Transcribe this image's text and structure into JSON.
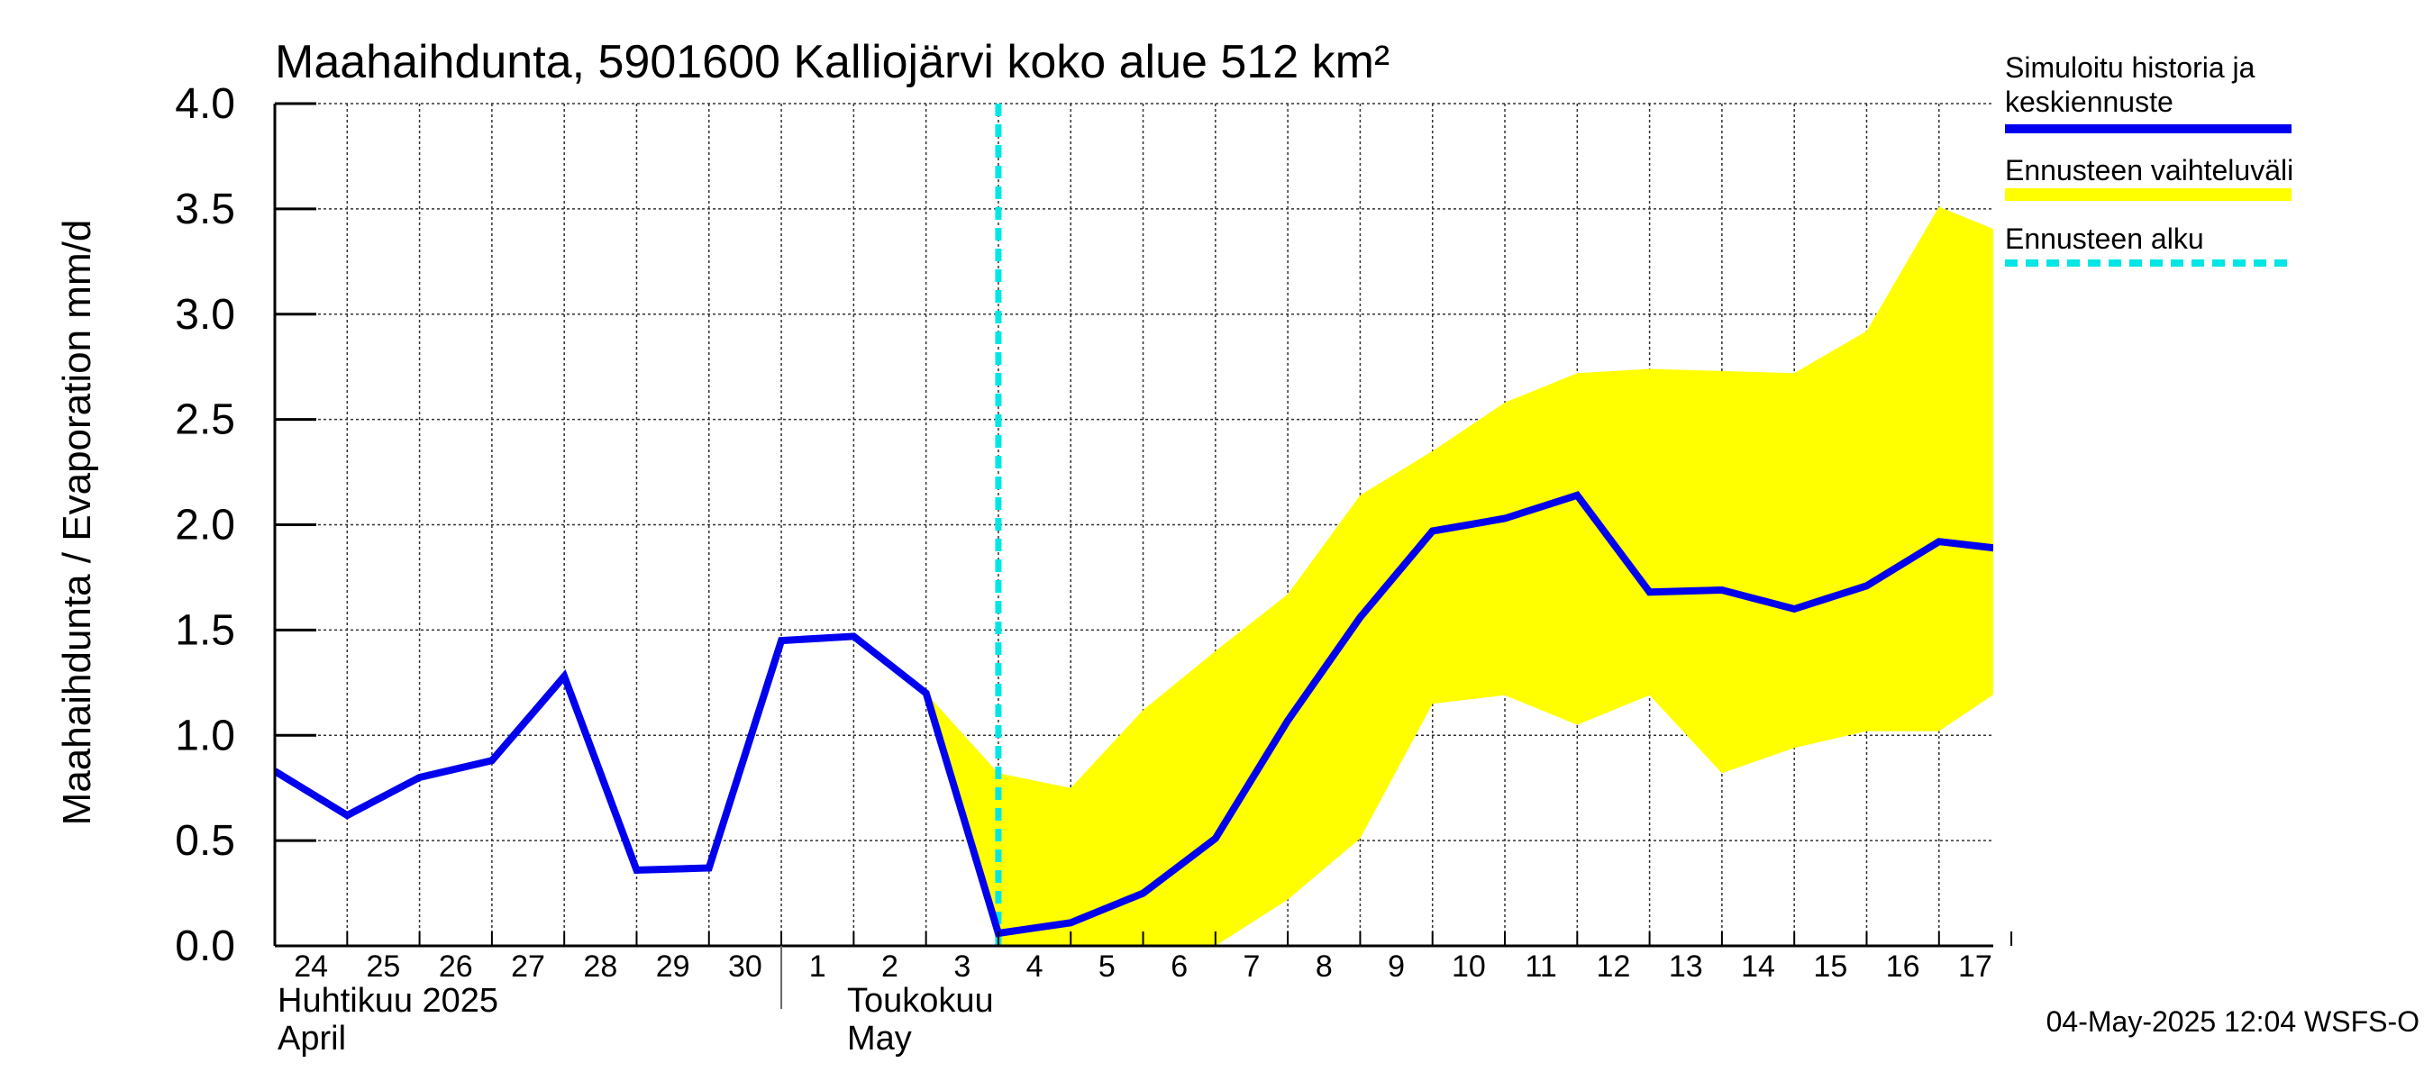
{
  "chart_data": {
    "type": "line",
    "title": "Maahaihdunta, 5901600 Kalliojärvi koko alue 512 km²",
    "ylabel": "Maahaihdunta / Evaporation   mm/d",
    "ylim": [
      0,
      4.0
    ],
    "yticks": [
      "0.0",
      "0.5",
      "1.0",
      "1.5",
      "2.0",
      "2.5",
      "3.0",
      "3.5",
      "4.0"
    ],
    "x_labels": [
      "24",
      "25",
      "26",
      "27",
      "28",
      "29",
      "30",
      "1",
      "2",
      "3",
      "4",
      "5",
      "6",
      "7",
      "8",
      "9",
      "10",
      "11",
      "12",
      "13",
      "14",
      "15",
      "16",
      "17"
    ],
    "month_labels": {
      "april_fi": "Huhtikuu  2025",
      "april_en": "April",
      "may_fi": "Toukokuu",
      "may_en": "May"
    },
    "grid": true,
    "forecast_start": "4",
    "series": [
      {
        "name": "Simuloitu historia ja keskiennuste",
        "color": "#0000ee",
        "x": [
          "24",
          "25",
          "26",
          "27",
          "28",
          "29",
          "30",
          "1",
          "2",
          "3",
          "4",
          "5",
          "6",
          "7",
          "8",
          "9",
          "10",
          "11",
          "12",
          "13",
          "14",
          "15",
          "16",
          "17",
          "18"
        ],
        "values": [
          0.83,
          0.62,
          0.8,
          0.88,
          1.28,
          0.36,
          0.37,
          1.45,
          1.47,
          1.2,
          0.06,
          0.11,
          0.25,
          0.51,
          1.07,
          1.56,
          1.97,
          2.03,
          2.14,
          1.68,
          1.69,
          1.6,
          1.71,
          1.92,
          1.88
        ]
      }
    ],
    "band": {
      "name": "Ennusteen vaihteluväli",
      "color": "#ffff00",
      "x": [
        "3",
        "4",
        "5",
        "6",
        "7",
        "8",
        "9",
        "10",
        "11",
        "12",
        "13",
        "14",
        "15",
        "16",
        "17",
        "18"
      ],
      "upper": [
        1.2,
        0.82,
        0.75,
        1.12,
        1.4,
        1.67,
        2.14,
        2.35,
        2.58,
        2.72,
        2.74,
        2.73,
        2.72,
        2.92,
        3.51,
        3.37
      ],
      "lower": [
        1.2,
        0.0,
        0.0,
        0.0,
        0.0,
        0.22,
        0.51,
        1.15,
        1.19,
        1.05,
        1.19,
        0.82,
        0.94,
        1.02,
        1.02,
        1.25
      ]
    },
    "legend": [
      {
        "label": "Simuloitu historia ja keskiennuste",
        "color": "#0000ee",
        "style": "solid"
      },
      {
        "label": "Ennusteen vaihteluväli",
        "color": "#ffff00",
        "style": "solid"
      },
      {
        "label": "Ennusteen alku",
        "color": "#00e5e5",
        "style": "dashed"
      }
    ],
    "legend_placement": "right"
  },
  "footer": "04-May-2025 12:04 WSFS-O"
}
